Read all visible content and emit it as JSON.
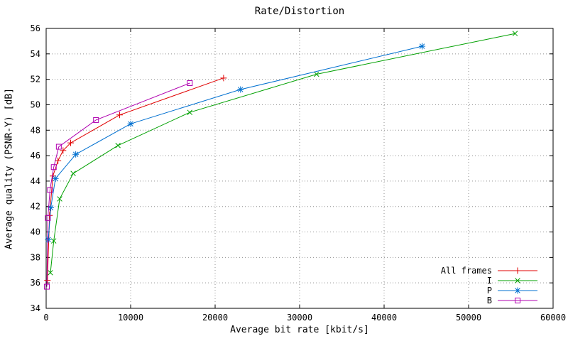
{
  "title": "Rate/Distortion",
  "xlabel": "Average bit rate [kbit/s]",
  "ylabel": "Average quality (PSNR-Y) [dB]",
  "chart_data": {
    "type": "line",
    "title": "Rate/Distortion",
    "xlabel": "Average bit rate [kbit/s]",
    "ylabel": "Average quality (PSNR-Y) [dB]",
    "xlim": [
      0,
      60000
    ],
    "ylim": [
      34,
      56
    ],
    "xtick_step": 10000,
    "ytick_step": 2,
    "grid": true,
    "legend_position": "bottom-right",
    "border_color": "#000000",
    "grid_color": "#909090",
    "series": [
      {
        "name": "All frames",
        "color": "#e00000",
        "marker": "plus",
        "points": [
          [
            150,
            36.2
          ],
          [
            400,
            41.3
          ],
          [
            800,
            44.4
          ],
          [
            1400,
            45.6
          ],
          [
            2000,
            46.4
          ],
          [
            2900,
            47.0
          ],
          [
            8700,
            49.2
          ],
          [
            21000,
            52.1
          ]
        ]
      },
      {
        "name": "I",
        "color": "#00a000",
        "marker": "cross",
        "points": [
          [
            500,
            36.8
          ],
          [
            900,
            39.3
          ],
          [
            1600,
            42.6
          ],
          [
            3200,
            44.6
          ],
          [
            8500,
            46.8
          ],
          [
            17000,
            49.4
          ],
          [
            32000,
            52.4
          ],
          [
            55500,
            55.6
          ]
        ]
      },
      {
        "name": "P",
        "color": "#0070d0",
        "marker": "star",
        "points": [
          [
            250,
            39.4
          ],
          [
            550,
            41.9
          ],
          [
            1100,
            44.2
          ],
          [
            3500,
            46.1
          ],
          [
            10000,
            48.5
          ],
          [
            23000,
            51.2
          ],
          [
            44500,
            54.6
          ]
        ]
      },
      {
        "name": "B",
        "color": "#b000b0",
        "marker": "square-open",
        "points": [
          [
            80,
            35.7
          ],
          [
            200,
            41.1
          ],
          [
            450,
            43.3
          ],
          [
            900,
            45.1
          ],
          [
            1500,
            46.7
          ],
          [
            5900,
            48.8
          ],
          [
            17000,
            51.7
          ]
        ]
      }
    ]
  }
}
